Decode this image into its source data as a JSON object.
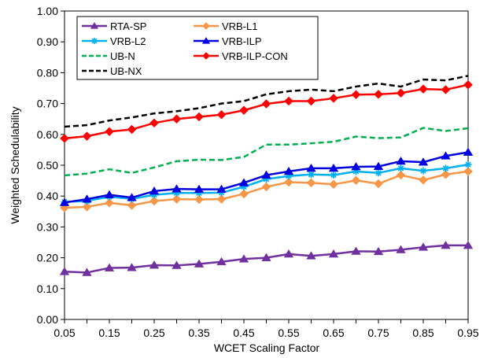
{
  "chart_data": {
    "type": "line",
    "title": "",
    "xlabel": "WCET Scaling Factor",
    "ylabel": "Weighted Schedulability",
    "x": [
      0.05,
      0.1,
      0.15,
      0.2,
      0.25,
      0.3,
      0.35,
      0.4,
      0.45,
      0.5,
      0.55,
      0.6,
      0.65,
      0.7,
      0.75,
      0.8,
      0.85,
      0.9,
      0.95
    ],
    "x_tick_labels": [
      "0.05",
      "0.15",
      "0.25",
      "0.35",
      "0.45",
      "0.55",
      "0.65",
      "0.75",
      "0.85",
      "0.95"
    ],
    "y_tick_labels": [
      "0.00",
      "0.10",
      "0.20",
      "0.30",
      "0.40",
      "0.50",
      "0.60",
      "0.70",
      "0.80",
      "0.90",
      "1.00"
    ],
    "ylim": [
      0,
      1.0
    ],
    "xlim": [
      0.05,
      0.95
    ],
    "grid": false,
    "legend_position": "top-left",
    "series": [
      {
        "name": "RTA-SP",
        "color": "#7030A0",
        "marker": "triangle",
        "dash": "solid",
        "values": [
          0.155,
          0.152,
          0.167,
          0.168,
          0.176,
          0.175,
          0.18,
          0.187,
          0.196,
          0.2,
          0.212,
          0.206,
          0.212,
          0.221,
          0.22,
          0.226,
          0.234,
          0.24,
          0.24
        ]
      },
      {
        "name": "VRB-L1",
        "color": "#F79646",
        "marker": "diamond",
        "dash": "solid",
        "values": [
          0.362,
          0.365,
          0.378,
          0.37,
          0.384,
          0.39,
          0.389,
          0.39,
          0.407,
          0.43,
          0.445,
          0.443,
          0.438,
          0.451,
          0.44,
          0.468,
          0.452,
          0.47,
          0.48
        ]
      },
      {
        "name": "VRB-L2",
        "color": "#00B0F0",
        "marker": "star",
        "dash": "solid",
        "values": [
          0.381,
          0.384,
          0.398,
          0.391,
          0.404,
          0.41,
          0.41,
          0.411,
          0.43,
          0.455,
          0.465,
          0.47,
          0.468,
          0.48,
          0.475,
          0.49,
          0.482,
          0.49,
          0.502
        ]
      },
      {
        "name": "VRB-ILP",
        "color": "#0000E0",
        "marker": "triangle",
        "dash": "solid",
        "values": [
          0.379,
          0.39,
          0.404,
          0.395,
          0.416,
          0.423,
          0.422,
          0.422,
          0.443,
          0.468,
          0.48,
          0.49,
          0.49,
          0.495,
          0.496,
          0.513,
          0.51,
          0.53,
          0.542
        ]
      },
      {
        "name": "UB-N",
        "color": "#00B050",
        "marker": "none",
        "dash": "dashed",
        "values": [
          0.467,
          0.473,
          0.487,
          0.475,
          0.493,
          0.513,
          0.518,
          0.517,
          0.527,
          0.567,
          0.567,
          0.571,
          0.576,
          0.593,
          0.588,
          0.59,
          0.621,
          0.611,
          0.62
        ]
      },
      {
        "name": "VRB-ILP-CON",
        "color": "#FF0000",
        "marker": "diamond",
        "dash": "solid",
        "values": [
          0.587,
          0.594,
          0.609,
          0.616,
          0.637,
          0.65,
          0.657,
          0.664,
          0.678,
          0.699,
          0.708,
          0.708,
          0.717,
          0.729,
          0.73,
          0.734,
          0.747,
          0.745,
          0.761
        ]
      },
      {
        "name": "UB-NX",
        "color": "#000000",
        "marker": "none",
        "dash": "dashed",
        "values": [
          0.625,
          0.63,
          0.645,
          0.655,
          0.668,
          0.675,
          0.685,
          0.7,
          0.708,
          0.73,
          0.74,
          0.745,
          0.74,
          0.755,
          0.765,
          0.755,
          0.778,
          0.775,
          0.79
        ]
      }
    ]
  }
}
